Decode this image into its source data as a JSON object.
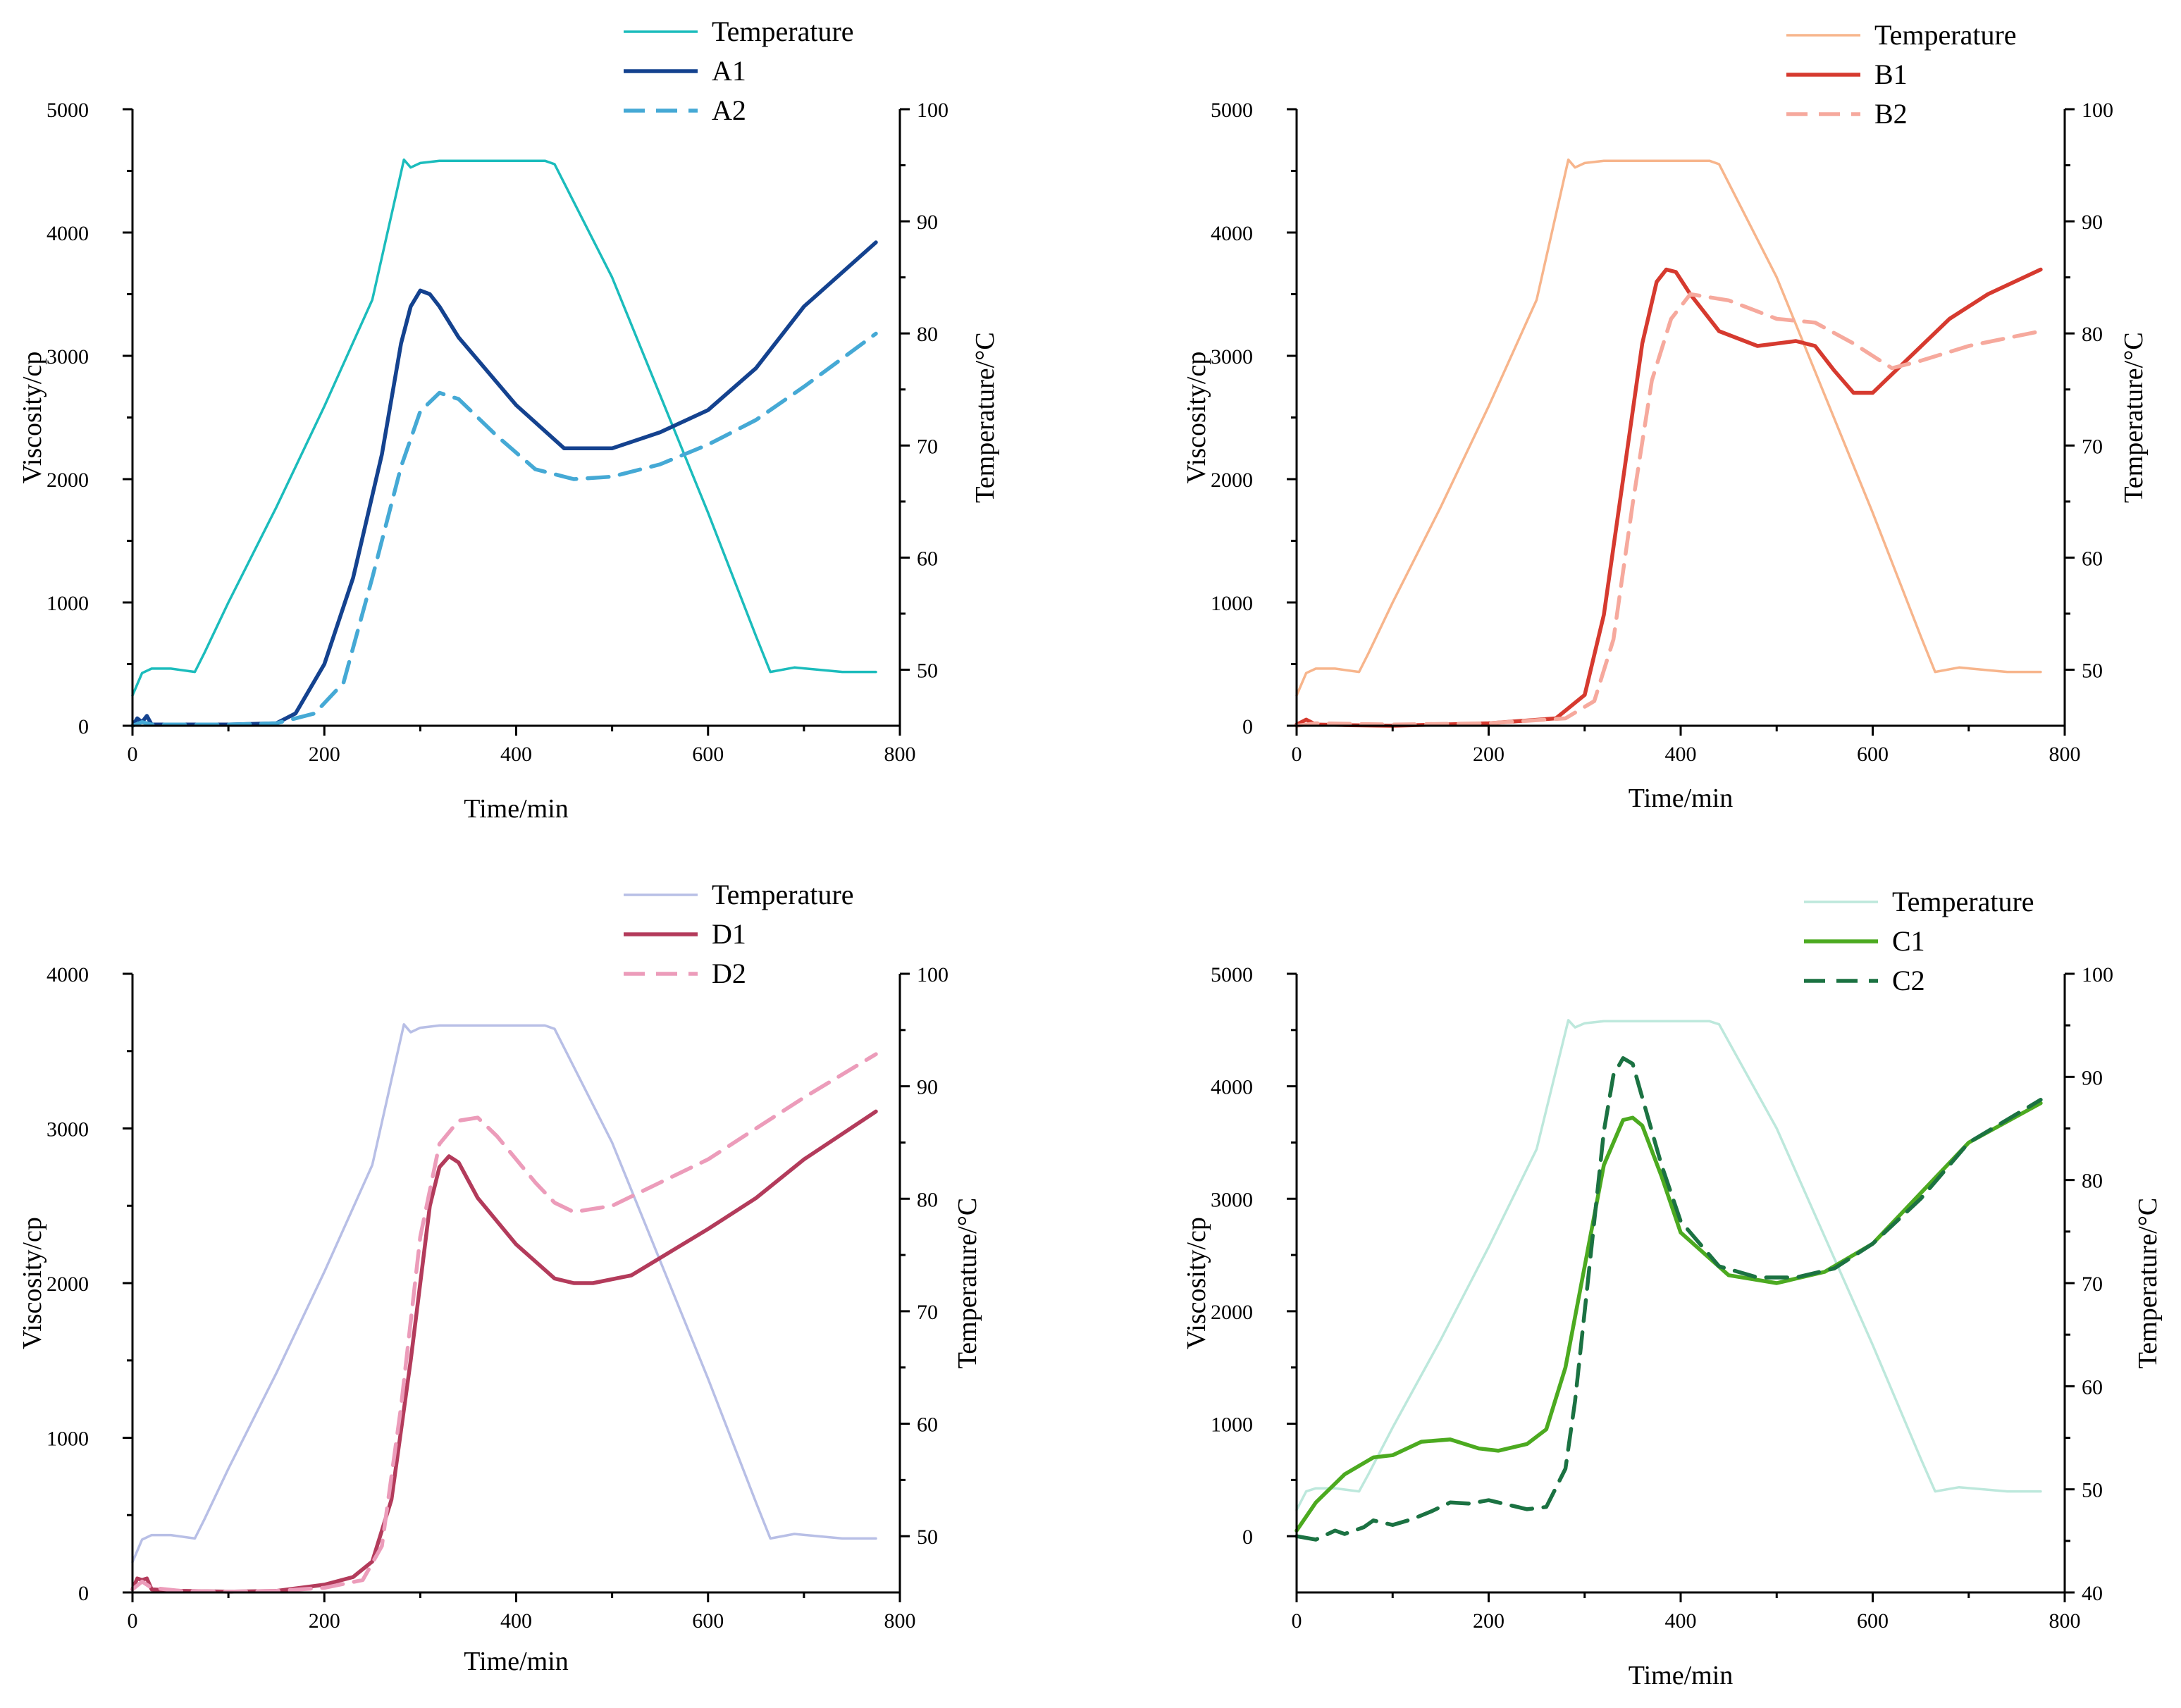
{
  "chart_data": [
    {
      "id": "A",
      "type": "line",
      "xlabel": "Time/min",
      "ylabel": "Viscosity/cp",
      "y2label": "Temperature/°C",
      "xlim": [
        0,
        800
      ],
      "ylim": [
        0,
        5000
      ],
      "y2lim": [
        45,
        100
      ],
      "xticks": [
        0,
        200,
        400,
        600,
        800
      ],
      "yticks": [
        0,
        1000,
        2000,
        3000,
        4000,
        5000
      ],
      "y2ticks": [
        50,
        60,
        70,
        80,
        90,
        100
      ],
      "legend": [
        "Temperature",
        "A1",
        "A2"
      ],
      "series": [
        {
          "name": "Temperature",
          "axis": "right",
          "color": "#1bbcbc",
          "dash": "solid",
          "x": [
            0,
            10,
            20,
            40,
            65,
            75,
            100,
            150,
            200,
            250,
            283,
            290,
            300,
            320,
            350,
            400,
            430,
            440,
            500,
            550,
            600,
            650,
            665,
            690,
            740,
            775
          ],
          "y": [
            47.7,
            49.7,
            50.1,
            50.1,
            49.8,
            51.5,
            56,
            64.5,
            73.5,
            83,
            95.5,
            94.8,
            95.2,
            95.4,
            95.4,
            95.4,
            95.4,
            95.1,
            85,
            74.5,
            64,
            53,
            49.8,
            50.2,
            49.8,
            49.8
          ]
        },
        {
          "name": "A1",
          "axis": "left",
          "color": "#14428f",
          "dash": "solid",
          "x": [
            0,
            5,
            10,
            15,
            20,
            50,
            100,
            150,
            170,
            200,
            230,
            260,
            280,
            290,
            300,
            310,
            320,
            340,
            400,
            450,
            500,
            550,
            600,
            650,
            700,
            775
          ],
          "y": [
            0,
            60,
            30,
            80,
            10,
            10,
            10,
            20,
            100,
            500,
            1200,
            2200,
            3100,
            3400,
            3530,
            3500,
            3400,
            3150,
            2600,
            2250,
            2250,
            2380,
            2560,
            2900,
            3400,
            3920
          ]
        },
        {
          "name": "A2",
          "axis": "left",
          "color": "#45a9d5",
          "dash": "dashed",
          "x": [
            0,
            10,
            20,
            50,
            100,
            150,
            190,
            220,
            250,
            280,
            300,
            320,
            340,
            380,
            420,
            460,
            500,
            550,
            600,
            650,
            700,
            775
          ],
          "y": [
            0,
            30,
            10,
            10,
            10,
            20,
            100,
            350,
            1200,
            2100,
            2550,
            2700,
            2650,
            2350,
            2080,
            2000,
            2020,
            2120,
            2280,
            2480,
            2750,
            3180
          ]
        }
      ]
    },
    {
      "id": "B",
      "type": "line",
      "xlabel": "Time/min",
      "ylabel": "Viscosity/cp",
      "y2label": "Temperature/°C",
      "xlim": [
        0,
        800
      ],
      "ylim": [
        0,
        5000
      ],
      "y2lim": [
        45,
        100
      ],
      "xticks": [
        0,
        200,
        400,
        600,
        800
      ],
      "yticks": [
        0,
        1000,
        2000,
        3000,
        4000,
        5000
      ],
      "y2ticks": [
        50,
        60,
        70,
        80,
        90,
        100
      ],
      "legend": [
        "Temperature",
        "B1",
        "B2"
      ],
      "series": [
        {
          "name": "Temperature",
          "axis": "right",
          "color": "#f7b58c",
          "dash": "solid",
          "x": [
            0,
            10,
            20,
            40,
            65,
            75,
            100,
            150,
            200,
            250,
            283,
            290,
            300,
            320,
            350,
            400,
            430,
            440,
            500,
            550,
            600,
            650,
            665,
            690,
            740,
            775
          ],
          "y": [
            47.7,
            49.7,
            50.1,
            50.1,
            49.8,
            51.5,
            56,
            64.5,
            73.5,
            83,
            95.5,
            94.8,
            95.2,
            95.4,
            95.4,
            95.4,
            95.4,
            95.1,
            85,
            74.5,
            64,
            53,
            49.8,
            50.2,
            49.8,
            49.8
          ]
        },
        {
          "name": "B1",
          "axis": "left",
          "color": "#d63a2f",
          "dash": "solid",
          "x": [
            0,
            10,
            20,
            50,
            100,
            200,
            270,
            300,
            320,
            340,
            360,
            375,
            385,
            395,
            410,
            440,
            480,
            520,
            540,
            560,
            580,
            600,
            640,
            680,
            720,
            775
          ],
          "y": [
            10,
            50,
            10,
            5,
            0,
            20,
            60,
            250,
            900,
            2000,
            3100,
            3600,
            3700,
            3680,
            3500,
            3200,
            3080,
            3120,
            3080,
            2880,
            2700,
            2700,
            3000,
            3300,
            3500,
            3700
          ]
        },
        {
          "name": "B2",
          "axis": "left",
          "color": "#f6a99d",
          "dash": "dashed",
          "x": [
            0,
            20,
            100,
            200,
            280,
            310,
            330,
            350,
            370,
            390,
            410,
            450,
            500,
            540,
            580,
            620,
            650,
            700,
            775
          ],
          "y": [
            0,
            20,
            10,
            20,
            60,
            200,
            700,
            1800,
            2800,
            3300,
            3500,
            3450,
            3300,
            3270,
            3100,
            2900,
            2960,
            3080,
            3200
          ]
        }
      ]
    },
    {
      "id": "D",
      "type": "line",
      "xlabel": "Time/min",
      "ylabel": "Viscosity/cp",
      "y2label": "Temperature/°C",
      "xlim": [
        0,
        800
      ],
      "ylim": [
        0,
        4000
      ],
      "y2lim": [
        45,
        100
      ],
      "xticks": [
        0,
        200,
        400,
        600,
        800
      ],
      "yticks": [
        0,
        1000,
        2000,
        3000,
        4000
      ],
      "y2ticks": [
        50,
        60,
        70,
        80,
        90,
        100
      ],
      "legend": [
        "Temperature",
        "D1",
        "D2"
      ],
      "series": [
        {
          "name": "Temperature",
          "axis": "right",
          "color": "#b8bfe6",
          "dash": "solid",
          "x": [
            0,
            10,
            20,
            40,
            65,
            75,
            100,
            150,
            200,
            250,
            283,
            290,
            300,
            320,
            350,
            400,
            430,
            440,
            500,
            550,
            600,
            650,
            665,
            690,
            740,
            775
          ],
          "y": [
            47.7,
            49.7,
            50.1,
            50.1,
            49.8,
            51.5,
            56,
            64.5,
            73.5,
            83,
            95.5,
            94.8,
            95.2,
            95.4,
            95.4,
            95.4,
            95.4,
            95.1,
            85,
            74.5,
            64,
            53,
            49.8,
            50.2,
            49.8,
            49.8
          ]
        },
        {
          "name": "D1",
          "axis": "left",
          "color": "#b33b5b",
          "dash": "solid",
          "x": [
            0,
            5,
            10,
            15,
            20,
            50,
            100,
            150,
            200,
            230,
            250,
            270,
            290,
            300,
            310,
            320,
            330,
            340,
            360,
            400,
            440,
            460,
            480,
            520,
            560,
            600,
            650,
            700,
            775
          ],
          "y": [
            20,
            90,
            80,
            90,
            20,
            10,
            5,
            10,
            50,
            100,
            200,
            600,
            1500,
            2000,
            2500,
            2750,
            2820,
            2780,
            2550,
            2250,
            2030,
            2000,
            2000,
            2050,
            2200,
            2350,
            2550,
            2800,
            3110
          ]
        },
        {
          "name": "D2",
          "axis": "left",
          "color": "#ec9cba",
          "dash": "dashed",
          "x": [
            0,
            10,
            20,
            50,
            100,
            150,
            200,
            240,
            260,
            280,
            300,
            320,
            340,
            360,
            380,
            400,
            420,
            440,
            460,
            500,
            550,
            600,
            650,
            700,
            775
          ],
          "y": [
            20,
            70,
            30,
            10,
            5,
            10,
            30,
            80,
            300,
            1200,
            2300,
            2900,
            3050,
            3070,
            2950,
            2800,
            2650,
            2520,
            2460,
            2500,
            2650,
            2800,
            3000,
            3200,
            3480
          ]
        }
      ]
    },
    {
      "id": "C",
      "type": "line",
      "xlabel": "Time/min",
      "ylabel": "Viscosity/cp",
      "y2label": "Temperature/°C",
      "xlim": [
        0,
        800
      ],
      "ylim": [
        -500,
        5000
      ],
      "y2lim": [
        40,
        100
      ],
      "xticks": [
        0,
        200,
        400,
        600,
        800
      ],
      "yticks": [
        0,
        1000,
        2000,
        3000,
        4000,
        5000
      ],
      "y2ticks": [
        40,
        50,
        60,
        70,
        80,
        90,
        100
      ],
      "legend": [
        "Temperature",
        "C1",
        "C2"
      ],
      "series": [
        {
          "name": "Temperature",
          "axis": "right",
          "color": "#bde8dc",
          "dash": "solid",
          "x": [
            0,
            10,
            20,
            40,
            65,
            75,
            100,
            150,
            200,
            250,
            283,
            290,
            300,
            320,
            350,
            400,
            430,
            440,
            500,
            550,
            600,
            650,
            665,
            690,
            740,
            775
          ],
          "y": [
            48,
            49.8,
            50.1,
            50.1,
            49.8,
            51.5,
            56,
            64.5,
            73.5,
            83,
            95.5,
            94.8,
            95.2,
            95.4,
            95.4,
            95.4,
            95.4,
            95.1,
            85,
            74.5,
            64,
            53,
            49.8,
            50.2,
            49.8,
            49.8
          ]
        },
        {
          "name": "C1",
          "axis": "left",
          "color": "#4caa20",
          "dash": "solid",
          "x": [
            0,
            20,
            50,
            80,
            100,
            130,
            160,
            190,
            210,
            240,
            260,
            280,
            300,
            320,
            340,
            350,
            360,
            380,
            400,
            450,
            500,
            550,
            600,
            650,
            700,
            775
          ],
          "y": [
            50,
            300,
            550,
            700,
            720,
            840,
            860,
            780,
            760,
            820,
            950,
            1500,
            2400,
            3300,
            3700,
            3720,
            3650,
            3200,
            2700,
            2320,
            2250,
            2350,
            2600,
            3050,
            3500,
            3850
          ]
        },
        {
          "name": "C2",
          "axis": "left",
          "color": "#1b7242",
          "dash": "dashed",
          "x": [
            0,
            20,
            40,
            50,
            70,
            80,
            100,
            120,
            140,
            160,
            180,
            200,
            220,
            240,
            260,
            280,
            290,
            300,
            310,
            320,
            330,
            340,
            350,
            360,
            380,
            400,
            440,
            480,
            520,
            560,
            600,
            650,
            700,
            775
          ],
          "y": [
            0,
            -30,
            50,
            20,
            80,
            140,
            100,
            150,
            220,
            300,
            290,
            320,
            280,
            240,
            260,
            600,
            1200,
            2000,
            2800,
            3600,
            4100,
            4250,
            4200,
            3900,
            3300,
            2800,
            2400,
            2300,
            2300,
            2380,
            2600,
            3000,
            3500,
            3880
          ]
        }
      ]
    }
  ]
}
